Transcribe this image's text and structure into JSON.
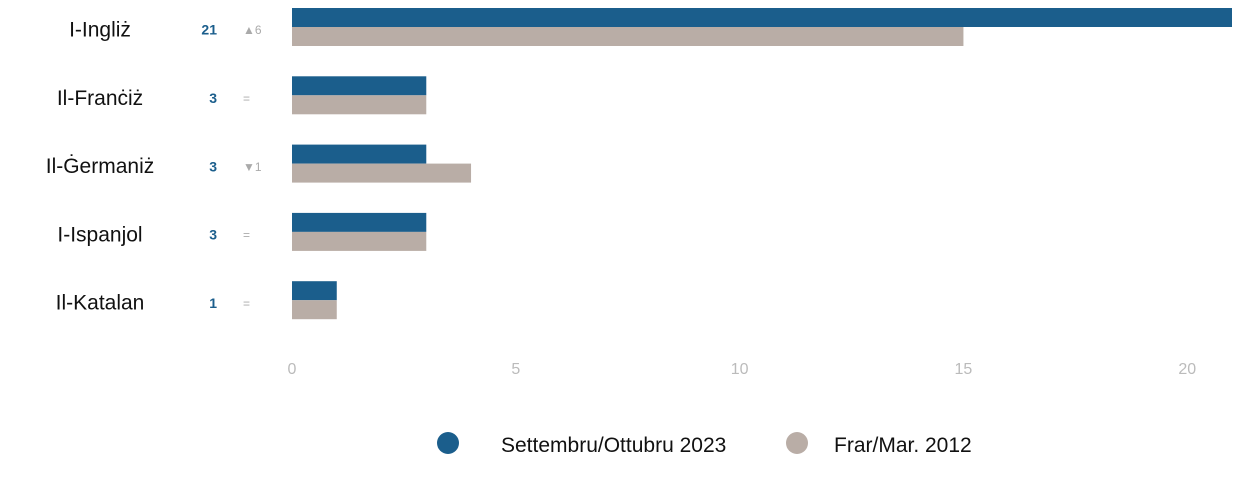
{
  "chart_data": {
    "type": "hbar",
    "categories": [
      "I-Ingliż",
      "Il-Franċiż",
      "Il-Ġermaniż",
      "I-Ispanjol",
      "Il-Katalan"
    ],
    "series": [
      {
        "name": "Settembru/Ottubru 2023",
        "color": "#1b5e8c",
        "values": [
          21,
          3,
          3,
          3,
          1
        ]
      },
      {
        "name": "Frar/Mar. 2012",
        "color": "#b9ada6",
        "values": [
          15,
          3,
          4,
          3,
          1
        ]
      }
    ],
    "changes": [
      "▲6",
      "=",
      "▼1",
      "=",
      "="
    ],
    "xlim": [
      0,
      21
    ],
    "xticks": [
      0,
      5,
      10,
      15,
      20
    ],
    "grid": false
  }
}
